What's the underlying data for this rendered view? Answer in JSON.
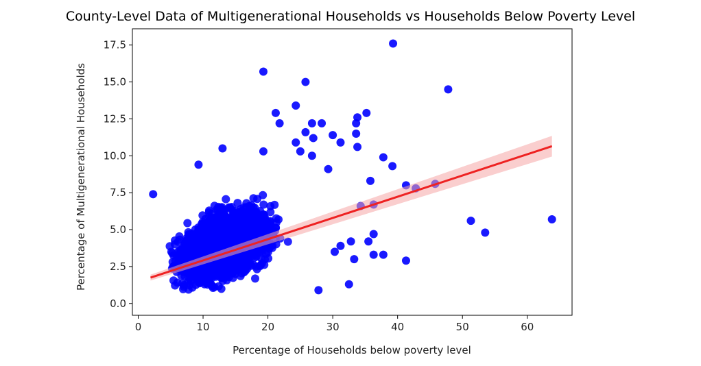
{
  "chart_data": {
    "type": "scatter",
    "title": "County-Level Data of Multigenerational Households vs Households Below Poverty Level",
    "xlabel": "Percentage of Households below poverty level",
    "ylabel": "Percentage of Multigenerational Households",
    "xlim": [
      -0.9,
      66.9
    ],
    "ylim": [
      -0.8,
      18.6
    ],
    "xticks": [
      0,
      10,
      20,
      30,
      40,
      50,
      60
    ],
    "yticks": [
      0.0,
      2.5,
      5.0,
      7.5,
      10.0,
      12.5,
      15.0,
      17.5
    ],
    "xtick_labels": [
      "0",
      "10",
      "20",
      "30",
      "40",
      "50",
      "60"
    ],
    "ytick_labels": [
      "0.0",
      "2.5",
      "5.0",
      "7.5",
      "10.0",
      "12.5",
      "15.0",
      "17.5"
    ],
    "grid": false,
    "point_color": "#0000ff",
    "line_color": "#ee2222",
    "band_color": "#f5a6a6",
    "cluster": {
      "x_center": 13.5,
      "y_center": 3.5,
      "approx_points": 3000
    },
    "regression": {
      "x": [
        1.9,
        63.8
      ],
      "y": [
        1.75,
        10.65
      ],
      "ci_lower": [
        1.55,
        9.95
      ],
      "ci_upper": [
        1.95,
        11.35
      ]
    },
    "points": [
      {
        "x": 39.3,
        "y": 17.6
      },
      {
        "x": 19.3,
        "y": 15.7
      },
      {
        "x": 25.8,
        "y": 15.0
      },
      {
        "x": 47.8,
        "y": 14.5
      },
      {
        "x": 24.3,
        "y": 13.4
      },
      {
        "x": 21.2,
        "y": 12.9
      },
      {
        "x": 35.2,
        "y": 12.9
      },
      {
        "x": 33.8,
        "y": 12.6
      },
      {
        "x": 21.8,
        "y": 12.2
      },
      {
        "x": 26.8,
        "y": 12.2
      },
      {
        "x": 28.3,
        "y": 12.2
      },
      {
        "x": 33.6,
        "y": 12.2
      },
      {
        "x": 25.8,
        "y": 11.6
      },
      {
        "x": 27.0,
        "y": 11.2
      },
      {
        "x": 30.0,
        "y": 11.4
      },
      {
        "x": 33.6,
        "y": 11.5
      },
      {
        "x": 31.2,
        "y": 10.9
      },
      {
        "x": 24.3,
        "y": 10.9
      },
      {
        "x": 33.8,
        "y": 10.6
      },
      {
        "x": 13.0,
        "y": 10.5
      },
      {
        "x": 19.3,
        "y": 10.3
      },
      {
        "x": 25.0,
        "y": 10.3
      },
      {
        "x": 26.8,
        "y": 10.0
      },
      {
        "x": 37.8,
        "y": 9.9
      },
      {
        "x": 39.2,
        "y": 9.3
      },
      {
        "x": 29.3,
        "y": 9.1
      },
      {
        "x": 9.3,
        "y": 9.4
      },
      {
        "x": 35.8,
        "y": 8.3
      },
      {
        "x": 41.3,
        "y": 8.0
      },
      {
        "x": 42.8,
        "y": 7.8
      },
      {
        "x": 45.8,
        "y": 8.1
      },
      {
        "x": 2.3,
        "y": 7.4
      },
      {
        "x": 36.3,
        "y": 6.7
      },
      {
        "x": 34.3,
        "y": 6.6
      },
      {
        "x": 51.3,
        "y": 5.6
      },
      {
        "x": 53.5,
        "y": 4.8
      },
      {
        "x": 63.8,
        "y": 5.7
      },
      {
        "x": 36.3,
        "y": 4.7
      },
      {
        "x": 35.5,
        "y": 4.2
      },
      {
        "x": 32.8,
        "y": 4.2
      },
      {
        "x": 31.2,
        "y": 3.9
      },
      {
        "x": 36.3,
        "y": 3.3
      },
      {
        "x": 37.8,
        "y": 3.3
      },
      {
        "x": 41.3,
        "y": 2.9
      },
      {
        "x": 32.5,
        "y": 1.3
      },
      {
        "x": 27.8,
        "y": 0.9
      },
      {
        "x": 30.3,
        "y": 3.5
      },
      {
        "x": 33.3,
        "y": 3.0
      }
    ]
  }
}
